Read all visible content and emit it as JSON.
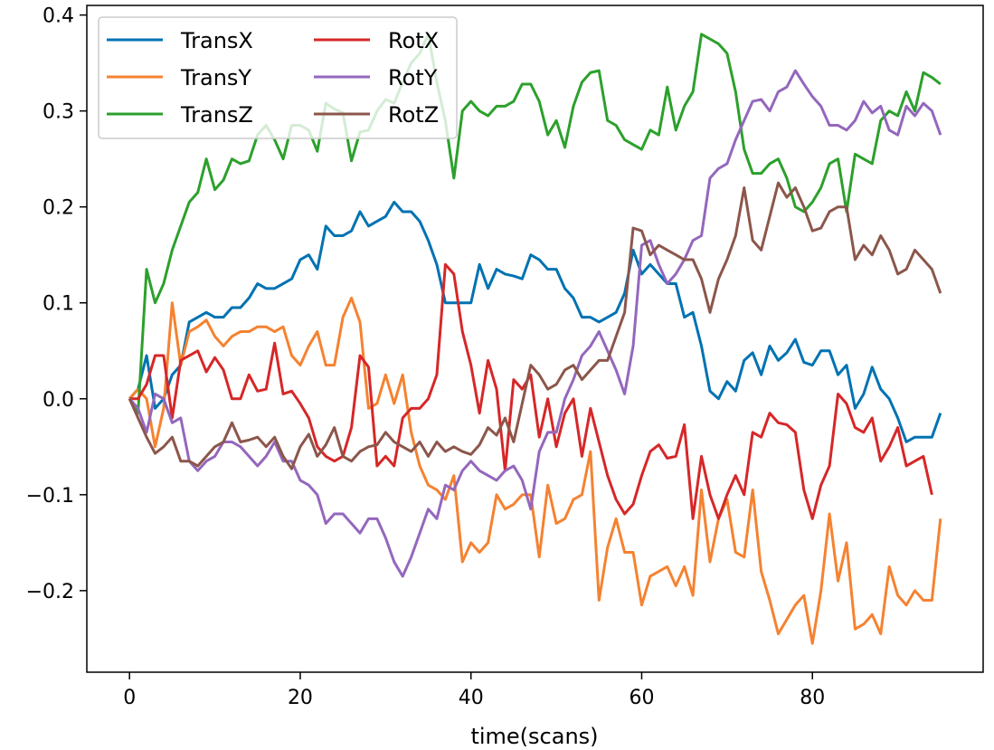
{
  "chart_data": {
    "type": "line",
    "title": "",
    "xlabel": "time(scans)",
    "ylabel": "",
    "xlim": [
      -5,
      100
    ],
    "ylim": [
      -0.285,
      0.41
    ],
    "xticks": [
      0,
      20,
      40,
      60,
      80
    ],
    "xtick_labels": [
      "0",
      "20",
      "40",
      "60",
      "80"
    ],
    "yticks": [
      -0.2,
      -0.1,
      0.0,
      0.1,
      0.2,
      0.3,
      0.4
    ],
    "ytick_labels": [
      "−0.2",
      "−0.1",
      "0.0",
      "0.1",
      "0.2",
      "0.3",
      "0.4"
    ],
    "grid": false,
    "legend": {
      "position": "top-left",
      "columns": 2
    },
    "series": [
      {
        "name": "TransX",
        "color": "#0072B2",
        "values": [
          0.0,
          0.01,
          0.045,
          -0.01,
          0.0,
          0.025,
          0.035,
          0.08,
          0.085,
          0.09,
          0.085,
          0.085,
          0.095,
          0.095,
          0.105,
          0.12,
          0.115,
          0.115,
          0.12,
          0.125,
          0.145,
          0.15,
          0.135,
          0.18,
          0.17,
          0.17,
          0.175,
          0.195,
          0.18,
          0.185,
          0.19,
          0.205,
          0.195,
          0.195,
          0.185,
          0.165,
          0.14,
          0.1,
          0.1,
          0.1,
          0.1,
          0.14,
          0.115,
          0.135,
          0.13,
          0.128,
          0.125,
          0.15,
          0.145,
          0.135,
          0.135,
          0.115,
          0.105,
          0.085,
          0.085,
          0.08,
          0.085,
          0.09,
          0.11,
          0.155,
          0.13,
          0.14,
          0.13,
          0.12,
          0.12,
          0.085,
          0.09,
          0.055,
          0.008,
          0.0,
          0.018,
          0.008,
          0.04,
          0.048,
          0.025,
          0.055,
          0.04,
          0.048,
          0.062,
          0.038,
          0.035,
          0.05,
          0.05,
          0.025,
          0.035,
          -0.01,
          0.005,
          0.033,
          0.01,
          0.0,
          -0.02,
          -0.045,
          -0.04,
          -0.04,
          -0.04,
          -0.015
        ]
      },
      {
        "name": "TransY",
        "color": "#F58231",
        "values": [
          0.0,
          0.01,
          0.0,
          -0.05,
          -0.01,
          0.1,
          0.035,
          0.07,
          0.075,
          0.082,
          0.065,
          0.055,
          0.065,
          0.07,
          0.07,
          0.075,
          0.075,
          0.07,
          0.075,
          0.045,
          0.035,
          0.055,
          0.07,
          0.035,
          0.035,
          0.085,
          0.105,
          0.08,
          -0.01,
          -0.005,
          0.025,
          -0.005,
          0.025,
          -0.035,
          -0.07,
          -0.09,
          -0.095,
          -0.105,
          -0.08,
          -0.17,
          -0.15,
          -0.16,
          -0.15,
          -0.1,
          -0.115,
          -0.11,
          -0.1,
          -0.1,
          -0.165,
          -0.09,
          -0.13,
          -0.125,
          -0.105,
          -0.1,
          -0.055,
          -0.21,
          -0.155,
          -0.125,
          -0.16,
          -0.16,
          -0.215,
          -0.185,
          -0.18,
          -0.175,
          -0.195,
          -0.175,
          -0.205,
          -0.095,
          -0.17,
          -0.125,
          -0.105,
          -0.16,
          -0.165,
          -0.095,
          -0.18,
          -0.21,
          -0.245,
          -0.23,
          -0.215,
          -0.205,
          -0.255,
          -0.2,
          -0.12,
          -0.19,
          -0.15,
          -0.24,
          -0.235,
          -0.225,
          -0.245,
          -0.175,
          -0.205,
          -0.215,
          -0.2,
          -0.21,
          -0.21,
          -0.125
        ]
      },
      {
        "name": "TransZ",
        "color": "#2CA02C",
        "values": [
          0.0,
          -0.015,
          0.135,
          0.1,
          0.12,
          0.155,
          0.18,
          0.205,
          0.215,
          0.25,
          0.218,
          0.228,
          0.25,
          0.245,
          0.248,
          0.275,
          0.285,
          0.27,
          0.25,
          0.285,
          0.285,
          0.28,
          0.258,
          0.308,
          0.302,
          0.298,
          0.248,
          0.278,
          0.28,
          0.3,
          0.312,
          0.308,
          0.33,
          0.35,
          0.36,
          0.38,
          0.33,
          0.29,
          0.23,
          0.3,
          0.31,
          0.3,
          0.295,
          0.305,
          0.305,
          0.31,
          0.328,
          0.328,
          0.31,
          0.275,
          0.29,
          0.262,
          0.305,
          0.33,
          0.34,
          0.342,
          0.29,
          0.285,
          0.27,
          0.265,
          0.26,
          0.28,
          0.275,
          0.325,
          0.28,
          0.305,
          0.32,
          0.38,
          0.375,
          0.37,
          0.36,
          0.32,
          0.26,
          0.235,
          0.235,
          0.245,
          0.25,
          0.23,
          0.2,
          0.195,
          0.205,
          0.22,
          0.245,
          0.25,
          0.195,
          0.255,
          0.25,
          0.245,
          0.29,
          0.3,
          0.295,
          0.32,
          0.3,
          0.34,
          0.335,
          0.328
        ]
      },
      {
        "name": "RotX",
        "color": "#D62728",
        "values": [
          0.0,
          0.0,
          0.015,
          0.045,
          0.045,
          -0.02,
          0.04,
          0.045,
          0.05,
          0.028,
          0.043,
          0.03,
          0.0,
          0.0,
          0.025,
          0.008,
          0.01,
          0.058,
          0.005,
          0.008,
          -0.005,
          -0.02,
          -0.05,
          -0.06,
          -0.065,
          -0.06,
          -0.03,
          0.045,
          0.033,
          -0.07,
          -0.06,
          -0.07,
          -0.02,
          -0.01,
          -0.01,
          0.0,
          0.025,
          0.14,
          0.13,
          0.07,
          0.035,
          -0.015,
          0.04,
          0.01,
          -0.075,
          0.02,
          0.01,
          0.025,
          -0.04,
          0.0,
          -0.05,
          -0.015,
          0.0,
          -0.06,
          -0.01,
          -0.045,
          -0.08,
          -0.105,
          -0.12,
          -0.11,
          -0.08,
          -0.055,
          -0.048,
          -0.062,
          -0.06,
          -0.027,
          -0.125,
          -0.06,
          -0.1,
          -0.125,
          -0.1,
          -0.08,
          -0.1,
          -0.035,
          -0.04,
          -0.015,
          -0.025,
          -0.027,
          -0.035,
          -0.095,
          -0.125,
          -0.09,
          -0.07,
          0.005,
          -0.005,
          -0.03,
          -0.035,
          -0.02,
          -0.065,
          -0.05,
          -0.03,
          -0.07,
          -0.065,
          -0.06,
          -0.1
        ]
      },
      {
        "name": "RotY",
        "color": "#9467BD",
        "values": [
          0.0,
          -0.01,
          -0.035,
          0.005,
          0.0,
          -0.025,
          -0.02,
          -0.065,
          -0.075,
          -0.065,
          -0.06,
          -0.045,
          -0.045,
          -0.05,
          -0.06,
          -0.07,
          -0.06,
          -0.045,
          -0.065,
          -0.065,
          -0.085,
          -0.09,
          -0.1,
          -0.13,
          -0.12,
          -0.12,
          -0.13,
          -0.14,
          -0.125,
          -0.125,
          -0.145,
          -0.17,
          -0.185,
          -0.165,
          -0.14,
          -0.115,
          -0.125,
          -0.09,
          -0.095,
          -0.075,
          -0.065,
          -0.075,
          -0.08,
          -0.085,
          -0.075,
          -0.07,
          -0.085,
          -0.115,
          -0.055,
          -0.035,
          -0.035,
          0.0,
          0.02,
          0.045,
          0.055,
          0.07,
          0.05,
          0.03,
          0.005,
          0.055,
          0.16,
          0.165,
          0.14,
          0.12,
          0.13,
          0.145,
          0.165,
          0.17,
          0.23,
          0.24,
          0.245,
          0.27,
          0.29,
          0.31,
          0.312,
          0.3,
          0.32,
          0.325,
          0.342,
          0.328,
          0.315,
          0.305,
          0.285,
          0.285,
          0.28,
          0.29,
          0.31,
          0.298,
          0.305,
          0.28,
          0.275,
          0.305,
          0.295,
          0.308,
          0.3,
          0.275
        ]
      },
      {
        "name": "RotZ",
        "color": "#8C564B",
        "values": [
          0.0,
          -0.02,
          -0.04,
          -0.057,
          -0.05,
          -0.04,
          -0.065,
          -0.065,
          -0.07,
          -0.06,
          -0.05,
          -0.045,
          -0.025,
          -0.045,
          -0.043,
          -0.04,
          -0.05,
          -0.04,
          -0.06,
          -0.073,
          -0.05,
          -0.037,
          -0.06,
          -0.048,
          -0.03,
          -0.06,
          -0.065,
          -0.055,
          -0.05,
          -0.048,
          -0.035,
          -0.045,
          -0.05,
          -0.055,
          -0.045,
          -0.06,
          -0.045,
          -0.055,
          -0.05,
          -0.055,
          -0.058,
          -0.048,
          -0.03,
          -0.038,
          -0.02,
          -0.045,
          -0.005,
          0.035,
          0.025,
          0.01,
          0.015,
          0.03,
          0.035,
          0.02,
          0.03,
          0.04,
          0.04,
          0.065,
          0.09,
          0.178,
          0.175,
          0.15,
          0.16,
          0.155,
          0.15,
          0.145,
          0.145,
          0.125,
          0.09,
          0.125,
          0.145,
          0.17,
          0.22,
          0.165,
          0.155,
          0.19,
          0.225,
          0.21,
          0.22,
          0.2,
          0.175,
          0.178,
          0.195,
          0.2,
          0.2,
          0.145,
          0.16,
          0.15,
          0.17,
          0.155,
          0.13,
          0.135,
          0.155,
          0.145,
          0.135,
          0.11
        ]
      }
    ]
  }
}
